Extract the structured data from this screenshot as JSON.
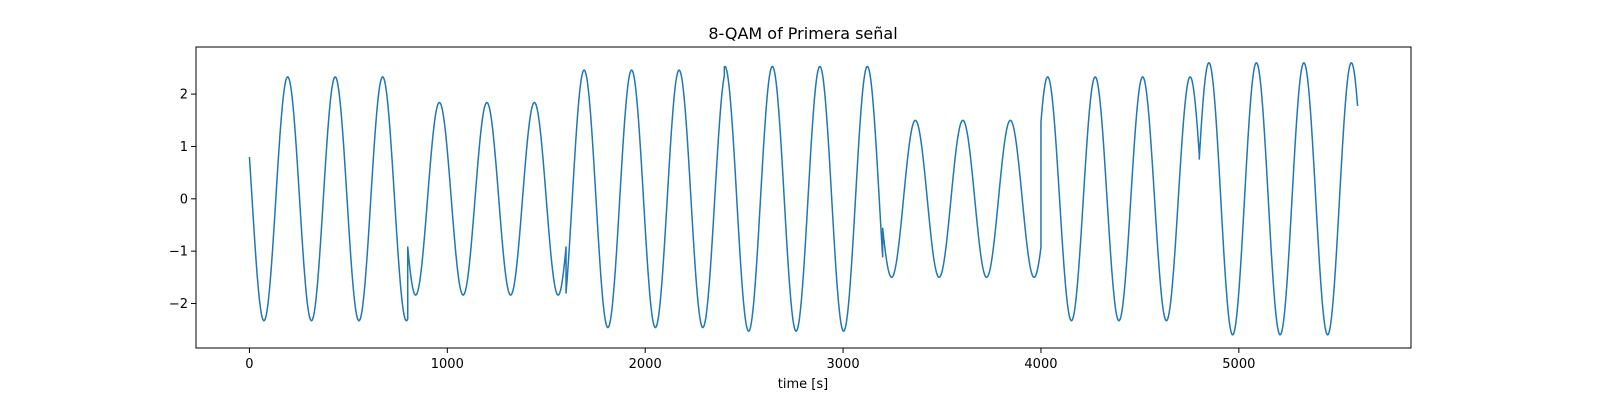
{
  "chart_data": {
    "type": "line",
    "title": "8-QAM of Primera señal",
    "xlabel": "time [s]",
    "ylabel": "",
    "xlim": [
      -270,
      5870
    ],
    "ylim": [
      -2.85,
      2.9
    ],
    "x_ticks": [
      0,
      1000,
      2000,
      3000,
      4000,
      5000
    ],
    "y_ticks": [
      -2,
      -1,
      0,
      1,
      2
    ],
    "x_tick_labels": [
      "0",
      "1000",
      "2000",
      "3000",
      "4000",
      "5000"
    ],
    "y_tick_labels": [
      "−2",
      "−1",
      "0",
      "1",
      "2"
    ],
    "grid": false,
    "line_color": "#1f77b4",
    "symbol_duration": 800,
    "samples_per_symbol": 200,
    "carrier_period": 240,
    "series": [
      {
        "symbols": [
          {
            "t_start": 0,
            "t_end": 800,
            "amplitude": 2.33,
            "phase_deg": 70
          },
          {
            "t_start": 800,
            "t_end": 1600,
            "amplitude": 1.84,
            "phase_deg": 0
          },
          {
            "t_start": 1600,
            "t_end": 2400,
            "amplitude": 2.46,
            "phase_deg": -17
          },
          {
            "t_start": 2400,
            "t_end": 3200,
            "amplitude": 2.53,
            "phase_deg": -4
          },
          {
            "t_start": 3200,
            "t_end": 4000,
            "amplitude": 1.5,
            "phase_deg": -8
          },
          {
            "t_start": 4000,
            "t_end": 4800,
            "amplitude": 2.33,
            "phase_deg": 69
          },
          {
            "t_start": 4800,
            "t_end": 5600,
            "amplitude": 2.6,
            "phase_deg": -73
          }
        ]
      }
    ]
  }
}
